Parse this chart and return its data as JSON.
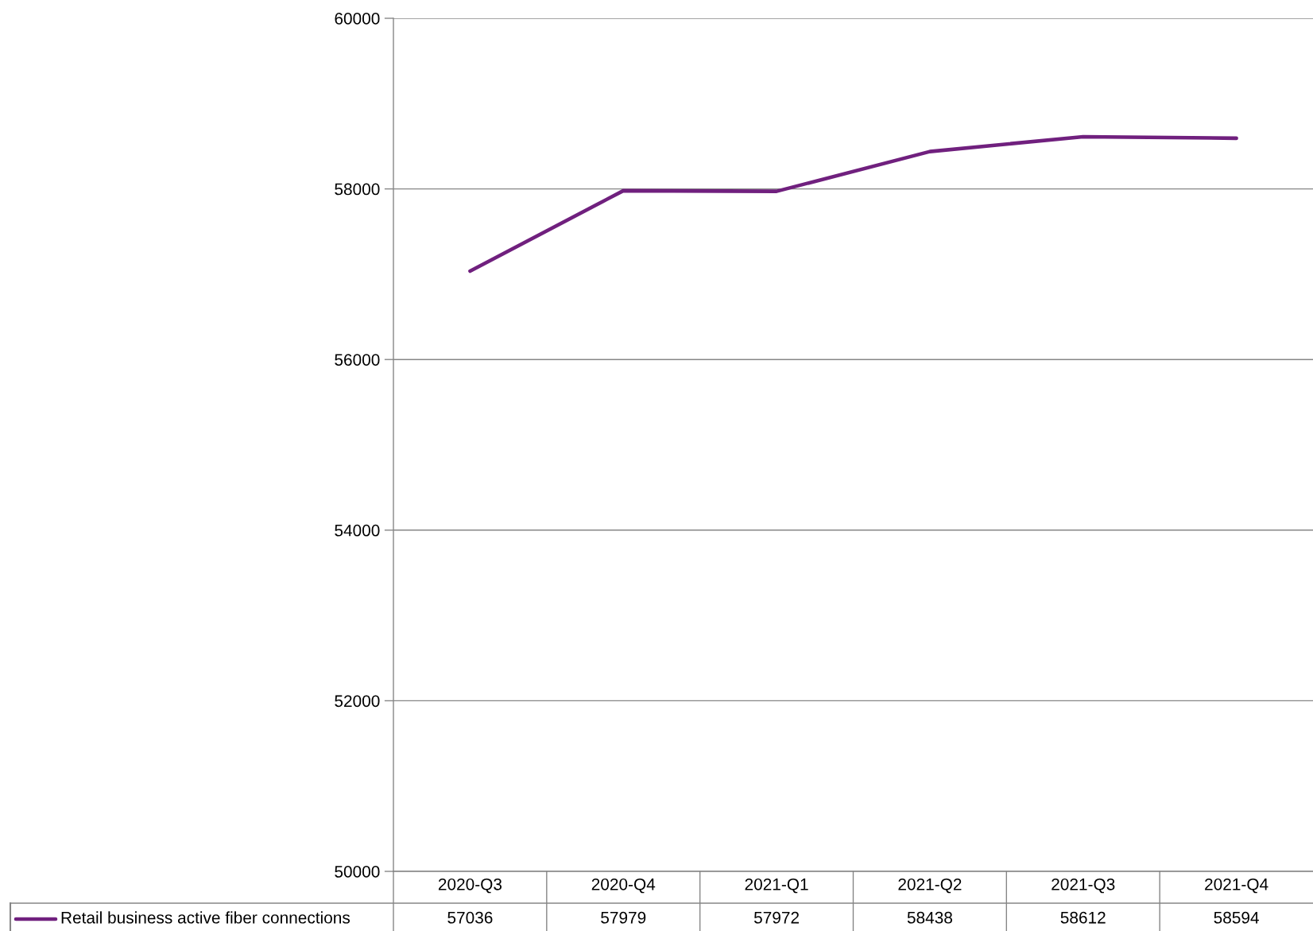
{
  "chart_data": {
    "type": "line",
    "categories": [
      "2020-Q3",
      "2020-Q4",
      "2021-Q1",
      "2021-Q2",
      "2021-Q3",
      "2021-Q4"
    ],
    "series": [
      {
        "name": "Retail business active fiber connections",
        "color": "#70207e",
        "values": [
          57036,
          57979,
          57972,
          58438,
          58612,
          58594
        ]
      }
    ],
    "ylim": [
      50000,
      60000
    ],
    "yticks": [
      50000,
      52000,
      54000,
      56000,
      58000,
      60000
    ],
    "grid": "y",
    "legend": "bottom left",
    "data_labels": true,
    "marker": "none",
    "line_style": "solid"
  }
}
